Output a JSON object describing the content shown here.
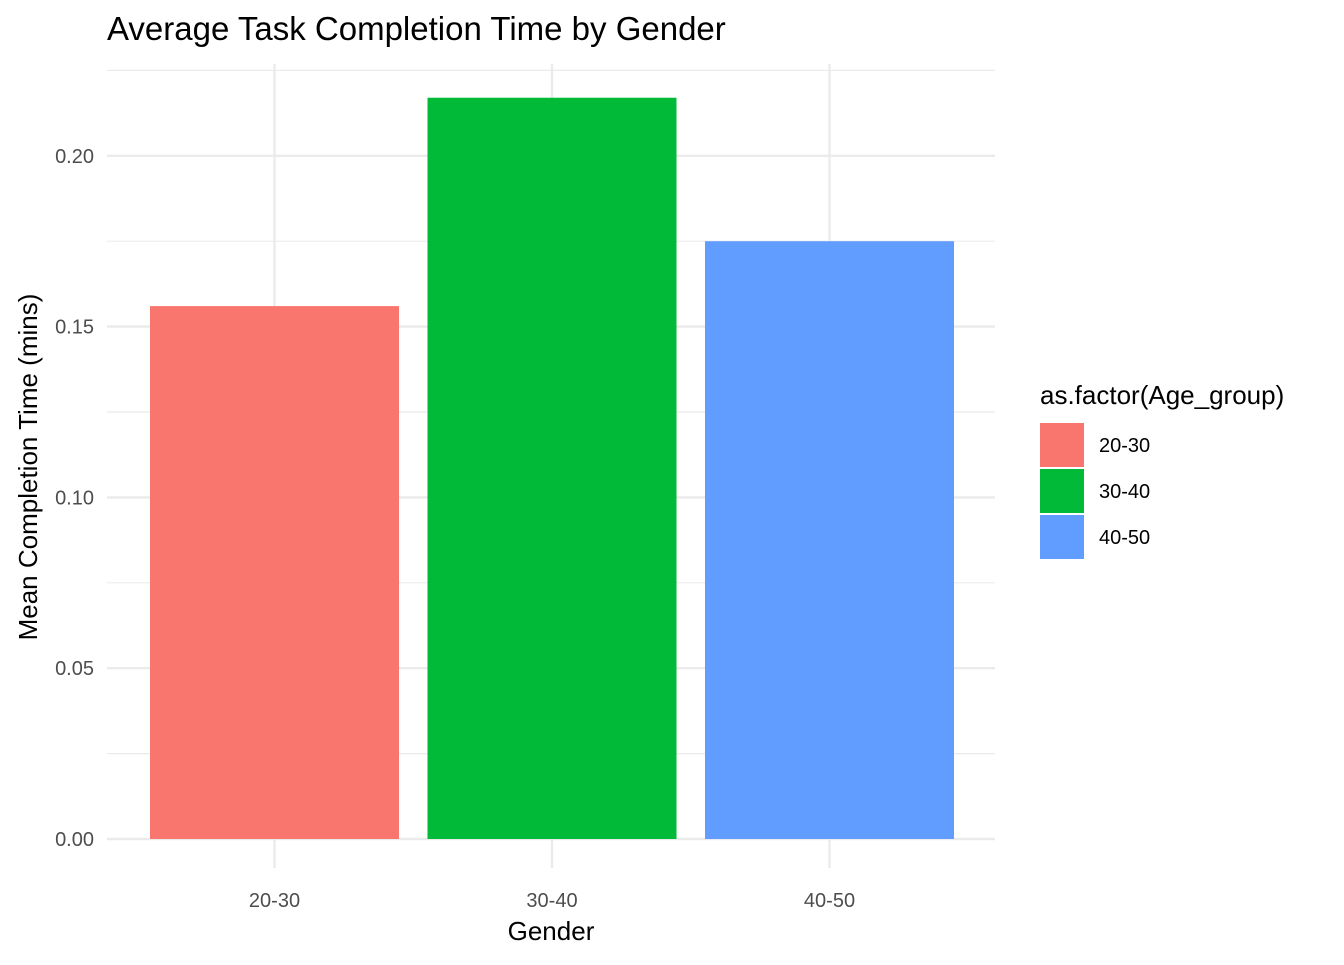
{
  "chart_data": {
    "type": "bar",
    "title": "Average Task Completion Time by Gender",
    "xlabel": "Gender",
    "ylabel": "Mean Completion Time (mins)",
    "categories": [
      "20-30",
      "30-40",
      "40-50"
    ],
    "values": [
      0.156,
      0.217,
      0.175
    ],
    "colors": [
      "#F8766D",
      "#00BA38",
      "#619CFF"
    ],
    "ylim": [
      0,
      0.2275
    ],
    "yticks": [
      0.0,
      0.05,
      0.1,
      0.15,
      0.2
    ],
    "ytick_labels": [
      "0.00",
      "0.05",
      "0.10",
      "0.15",
      "0.20"
    ],
    "grid": true,
    "legend": {
      "title": "as.factor(Age_group)",
      "placement": "right",
      "entries": [
        "20-30",
        "30-40",
        "40-50"
      ]
    }
  }
}
